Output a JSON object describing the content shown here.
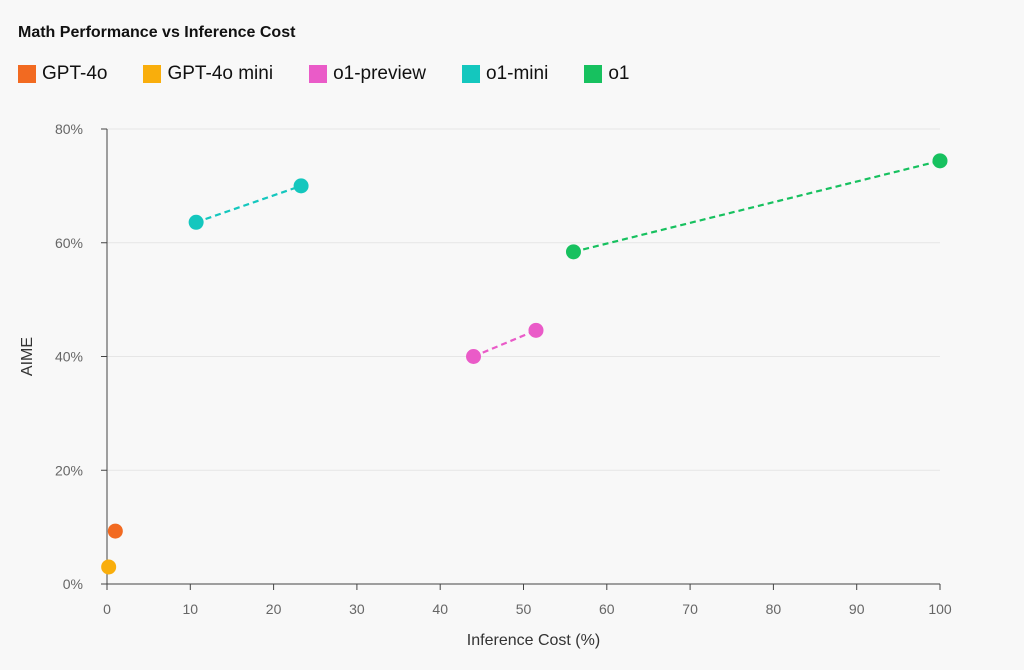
{
  "chart_data": {
    "type": "scatter",
    "title": "Math Performance vs Inference Cost",
    "xlabel": "Inference Cost (%)",
    "ylabel": "AIME",
    "xlim": [
      0,
      100
    ],
    "ylim": [
      0,
      80
    ],
    "xticks": [
      0,
      10,
      20,
      30,
      40,
      50,
      60,
      70,
      80,
      90,
      100
    ],
    "yticks": [
      0,
      20,
      40,
      60,
      80
    ],
    "ytick_labels": [
      "0%",
      "20%",
      "40%",
      "60%",
      "80%"
    ],
    "grid": true,
    "legend_position": "top-left",
    "series": [
      {
        "name": "GPT-4o",
        "color": "#f26a21",
        "points": [
          {
            "x": 1.0,
            "y": 9.3
          }
        ],
        "connect": false
      },
      {
        "name": "GPT-4o mini",
        "color": "#f9ae0c",
        "points": [
          {
            "x": 0.2,
            "y": 3.0
          }
        ],
        "connect": false
      },
      {
        "name": "o1-preview",
        "color": "#ea5bc8",
        "points": [
          {
            "x": 44.0,
            "y": 40.0
          },
          {
            "x": 51.5,
            "y": 44.6
          }
        ],
        "connect": true
      },
      {
        "name": "o1-mini",
        "color": "#14c7be",
        "points": [
          {
            "x": 10.7,
            "y": 63.6
          },
          {
            "x": 23.3,
            "y": 70.0
          }
        ],
        "connect": true
      },
      {
        "name": "o1",
        "color": "#17c15f",
        "points": [
          {
            "x": 56.0,
            "y": 58.4
          },
          {
            "x": 100.0,
            "y": 74.4
          }
        ],
        "connect": true
      }
    ]
  }
}
